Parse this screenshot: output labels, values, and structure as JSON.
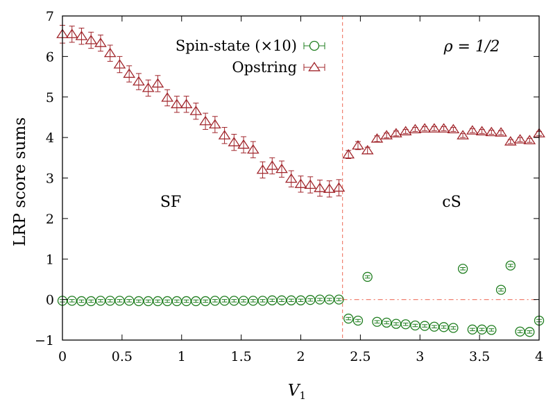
{
  "chart_data": {
    "type": "scatter",
    "xlabel": "V",
    "xlabel_sub": "1",
    "ylabel": "LRP score sums",
    "xlim": [
      0,
      4
    ],
    "ylim": [
      -1,
      7
    ],
    "xticks": [
      "0",
      "0.5",
      "1",
      "1.5",
      "2",
      "2.5",
      "3",
      "3.5",
      "4"
    ],
    "yticks": [
      "−1",
      "0",
      "1",
      "2",
      "3",
      "4",
      "5",
      "6",
      "7"
    ],
    "grid": false,
    "legend_position": "top-left",
    "annotations": {
      "rho": "ρ = 1/2",
      "sf": "SF",
      "cs": "cS"
    },
    "transition_x": 2.35,
    "zero_line": true,
    "colors": {
      "opstring": "#a0242a",
      "spin": "#1e7d1e",
      "reference": "#f08070"
    },
    "series": [
      {
        "name": "Spin-state (×10)",
        "marker": "circle",
        "x": [
          0,
          0.08,
          0.16,
          0.24,
          0.32,
          0.4,
          0.48,
          0.56,
          0.64,
          0.72,
          0.8,
          0.88,
          0.96,
          1.04,
          1.12,
          1.2,
          1.28,
          1.36,
          1.44,
          1.52,
          1.6,
          1.68,
          1.76,
          1.84,
          1.92,
          2.0,
          2.08,
          2.16,
          2.24,
          2.32,
          2.4,
          2.48,
          2.56,
          2.64,
          2.72,
          2.8,
          2.88,
          2.96,
          3.04,
          3.12,
          3.2,
          3.28,
          3.36,
          3.44,
          3.52,
          3.6,
          3.68,
          3.76,
          3.84,
          3.92,
          4.0
        ],
        "values": [
          -0.03,
          -0.03,
          -0.04,
          -0.04,
          -0.03,
          -0.03,
          -0.03,
          -0.03,
          -0.04,
          -0.04,
          -0.04,
          -0.04,
          -0.04,
          -0.04,
          -0.04,
          -0.04,
          -0.03,
          -0.03,
          -0.03,
          -0.03,
          -0.03,
          -0.03,
          -0.02,
          -0.02,
          -0.02,
          -0.02,
          -0.01,
          0.0,
          0.0,
          0.0,
          -0.47,
          -0.52,
          0.56,
          -0.55,
          -0.57,
          -0.6,
          -0.61,
          -0.64,
          -0.65,
          -0.67,
          -0.68,
          -0.7,
          0.76,
          -0.74,
          -0.74,
          -0.75,
          0.24,
          0.84,
          -0.79,
          -0.8,
          -0.52
        ],
        "errors": [
          0.03,
          0.03,
          0.03,
          0.03,
          0.03,
          0.03,
          0.03,
          0.03,
          0.03,
          0.03,
          0.03,
          0.03,
          0.03,
          0.03,
          0.03,
          0.03,
          0.03,
          0.03,
          0.03,
          0.03,
          0.03,
          0.03,
          0.03,
          0.03,
          0.03,
          0.03,
          0.03,
          0.03,
          0.03,
          0.03,
          0.03,
          0.03,
          0.03,
          0.03,
          0.03,
          0.03,
          0.03,
          0.03,
          0.03,
          0.03,
          0.03,
          0.03,
          0.03,
          0.03,
          0.03,
          0.03,
          0.03,
          0.03,
          0.03,
          0.03,
          0.03
        ]
      },
      {
        "name": "Opstring",
        "marker": "triangle",
        "x": [
          0,
          0.08,
          0.16,
          0.24,
          0.32,
          0.4,
          0.48,
          0.56,
          0.64,
          0.72,
          0.8,
          0.88,
          0.96,
          1.04,
          1.12,
          1.2,
          1.28,
          1.36,
          1.44,
          1.52,
          1.6,
          1.68,
          1.76,
          1.84,
          1.92,
          2.0,
          2.08,
          2.16,
          2.24,
          2.32,
          2.4,
          2.48,
          2.56,
          2.64,
          2.72,
          2.8,
          2.88,
          2.96,
          3.04,
          3.12,
          3.2,
          3.28,
          3.36,
          3.44,
          3.52,
          3.6,
          3.68,
          3.76,
          3.84,
          3.92,
          4.0
        ],
        "values": [
          6.55,
          6.55,
          6.5,
          6.4,
          6.33,
          6.08,
          5.8,
          5.57,
          5.38,
          5.22,
          5.33,
          4.98,
          4.82,
          4.82,
          4.65,
          4.4,
          4.32,
          4.05,
          3.88,
          3.82,
          3.7,
          3.2,
          3.3,
          3.22,
          2.98,
          2.85,
          2.83,
          2.75,
          2.73,
          2.76,
          3.58,
          3.8,
          3.68,
          3.97,
          4.05,
          4.1,
          4.15,
          4.2,
          4.22,
          4.22,
          4.22,
          4.2,
          4.05,
          4.17,
          4.15,
          4.13,
          4.12,
          3.9,
          3.95,
          3.93,
          4.1
        ],
        "errors": [
          0.22,
          0.2,
          0.2,
          0.2,
          0.2,
          0.2,
          0.2,
          0.2,
          0.2,
          0.2,
          0.2,
          0.2,
          0.2,
          0.2,
          0.2,
          0.2,
          0.2,
          0.2,
          0.2,
          0.2,
          0.2,
          0.2,
          0.2,
          0.2,
          0.2,
          0.2,
          0.2,
          0.2,
          0.2,
          0.2,
          0.1,
          0.1,
          0.08,
          0.07,
          0.06,
          0.06,
          0.05,
          0.05,
          0.05,
          0.05,
          0.05,
          0.05,
          0.05,
          0.05,
          0.05,
          0.05,
          0.05,
          0.05,
          0.05,
          0.05,
          0.05
        ]
      }
    ]
  }
}
